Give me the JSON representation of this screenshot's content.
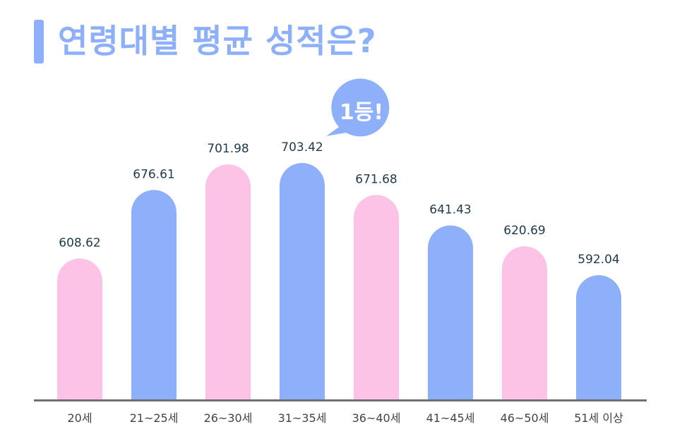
{
  "title": "연령대별 평균 성적은?",
  "callout": "1등!",
  "colors": {
    "pink": "#fcc3e6",
    "blue": "#8eb0fa",
    "title": "#8eb0fa",
    "axis": "#6f6f6f",
    "value_label": "#1f3a4a",
    "category_label": "#444444"
  },
  "chart_data": {
    "type": "bar",
    "title": "연령대별 평균 성적은?",
    "xlabel": "",
    "ylabel": "",
    "categories": [
      "20세",
      "21~25세",
      "26~30세",
      "31~35세",
      "36~40세",
      "41~45세",
      "46~50세",
      "51세 이상"
    ],
    "values": [
      608.62,
      676.61,
      701.98,
      703.42,
      671.68,
      641.43,
      620.69,
      592.04
    ],
    "value_labels": [
      "608.62",
      "676.61",
      "701.98",
      "703.42",
      "671.68",
      "641.43",
      "620.69",
      "592.04"
    ],
    "bar_colors": [
      "pink",
      "blue",
      "pink",
      "blue",
      "pink",
      "blue",
      "pink",
      "blue"
    ],
    "highlight_index": 3,
    "grid": false,
    "legend": "none"
  }
}
